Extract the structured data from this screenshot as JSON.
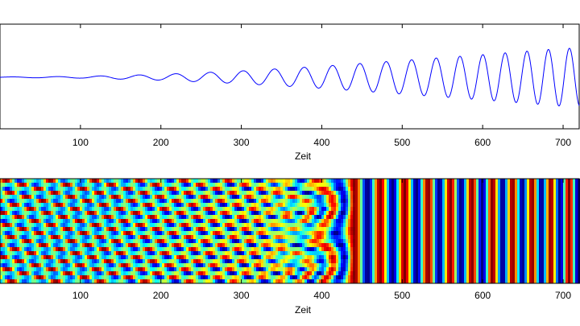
{
  "chart_data": [
    {
      "type": "line",
      "xlabel": "Zeit",
      "xticks": [
        100,
        200,
        300,
        400,
        500,
        600,
        700
      ],
      "xlim": [
        0,
        720
      ],
      "series": [
        {
          "color": "#0000ff",
          "amplitude_envelope": {
            "x": [
              0,
              100,
              200,
              300,
              400,
              500,
              600,
              700
            ],
            "amp": [
              0.01,
              0.03,
              0.1,
              0.22,
              0.38,
              0.58,
              0.78,
              1.0
            ]
          },
          "period_envelope": {
            "x": [
              0,
              200,
              400,
              600,
              700
            ],
            "period": [
              60,
              45,
              35,
              28,
              26
            ]
          }
        }
      ]
    },
    {
      "type": "heatmap",
      "xlabel": "Zeit",
      "xticks": [
        100,
        200,
        300,
        400,
        500,
        600,
        700
      ],
      "xlim": [
        0,
        720
      ],
      "colormap": "jet",
      "note_pattern": "noisy phase on the left, coherent vertical stripes from about 400 onward"
    }
  ]
}
